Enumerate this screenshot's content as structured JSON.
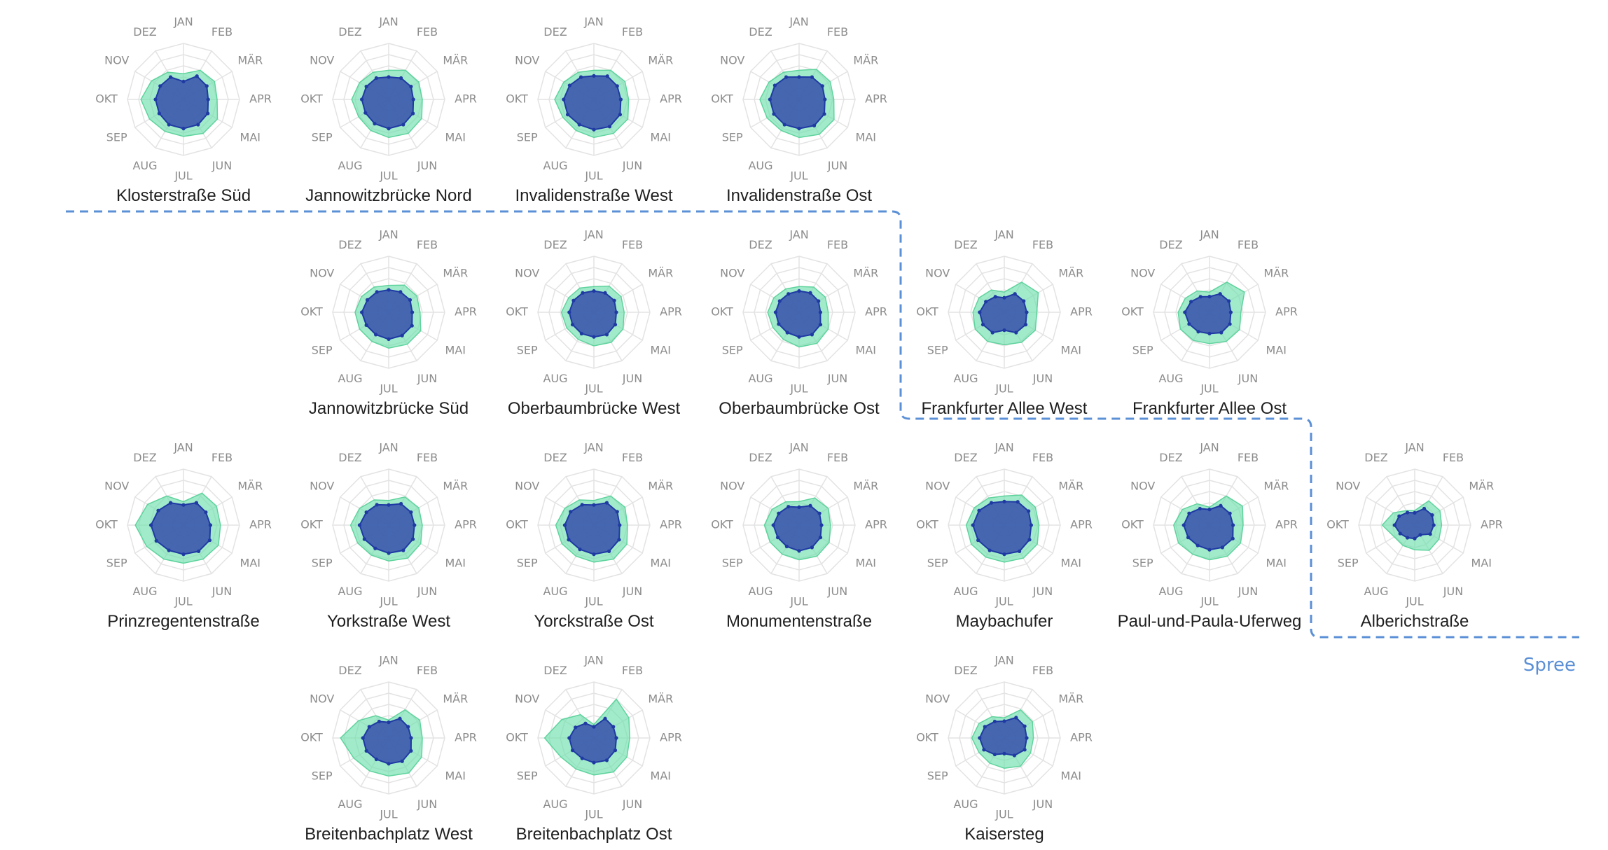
{
  "colors": {
    "outer_fill": "#6fe0ad",
    "outer_stroke": "#5fd39d",
    "inner_fill": "#3c58ad",
    "inner_stroke": "#1f3aa3",
    "grid": "#e3e3e3",
    "river": "#5b90d6"
  },
  "river_label": "Spree",
  "chart_data": {
    "type": "radar",
    "months": [
      "JAN",
      "FEB",
      "MÄR",
      "APR",
      "MAI",
      "JUN",
      "JUL",
      "AUG",
      "SEP",
      "OKT",
      "NOV",
      "DEZ"
    ],
    "rmax": 5,
    "series_names": [
      "outer",
      "inner"
    ],
    "stations": [
      {
        "name": "Klosterstraße Süd",
        "outer": [
          2.3,
          3.0,
          3.2,
          3.0,
          3.5,
          3.5,
          3.3,
          3.3,
          3.5,
          3.8,
          3.3,
          2.8
        ],
        "inner": [
          1.6,
          2.4,
          2.4,
          2.2,
          2.5,
          2.6,
          2.6,
          2.6,
          2.5,
          2.5,
          2.4,
          2.3
        ]
      },
      {
        "name": "Jannowitzbrücke Nord",
        "outer": [
          2.6,
          3.0,
          3.1,
          3.0,
          3.4,
          3.5,
          3.4,
          3.2,
          3.1,
          3.3,
          3.0,
          2.8
        ],
        "inner": [
          2.0,
          2.2,
          2.3,
          2.2,
          2.5,
          2.6,
          2.6,
          2.5,
          2.4,
          2.4,
          2.3,
          2.2
        ]
      },
      {
        "name": "Invalidenstraße West",
        "outer": [
          2.6,
          3.0,
          3.2,
          3.1,
          3.5,
          3.5,
          3.4,
          3.2,
          3.2,
          3.5,
          3.1,
          2.8
        ],
        "inner": [
          2.1,
          2.4,
          2.4,
          2.4,
          2.7,
          2.8,
          2.7,
          2.6,
          2.7,
          2.7,
          2.5,
          2.3
        ]
      },
      {
        "name": "Invalidenstraße Ost",
        "outer": [
          2.6,
          3.1,
          3.2,
          3.1,
          3.6,
          3.6,
          3.4,
          3.2,
          3.3,
          3.5,
          3.1,
          2.8
        ],
        "inner": [
          2.0,
          2.3,
          2.4,
          2.3,
          2.6,
          2.7,
          2.6,
          2.6,
          2.6,
          2.6,
          2.5,
          2.3
        ]
      },
      {
        "name": "Jannowitzbrücke Süd",
        "outer": [
          2.4,
          2.8,
          2.9,
          2.8,
          3.3,
          3.3,
          3.2,
          3.0,
          3.0,
          3.0,
          2.8,
          2.6
        ],
        "inner": [
          2.0,
          2.1,
          2.2,
          2.1,
          2.4,
          2.4,
          2.4,
          2.3,
          2.3,
          2.4,
          2.2,
          2.1
        ]
      },
      {
        "name": "Oberbaumbrücke West",
        "outer": [
          2.3,
          2.7,
          2.8,
          2.7,
          3.0,
          3.1,
          3.0,
          2.8,
          2.8,
          2.9,
          2.6,
          2.5
        ],
        "inner": [
          1.9,
          2.0,
          2.1,
          2.0,
          2.2,
          2.3,
          2.2,
          2.2,
          2.2,
          2.2,
          2.1,
          2.0
        ]
      },
      {
        "name": "Oberbaumbrücke Ost",
        "outer": [
          2.3,
          2.6,
          2.7,
          2.6,
          3.0,
          3.2,
          3.1,
          2.8,
          2.7,
          2.8,
          2.6,
          2.4
        ],
        "inner": [
          1.9,
          2.0,
          2.0,
          1.9,
          2.2,
          2.3,
          2.2,
          2.1,
          2.1,
          2.1,
          2.0,
          1.9
        ]
      },
      {
        "name": "Frankfurter Allee West",
        "outer": [
          1.8,
          3.1,
          3.5,
          2.9,
          3.2,
          3.1,
          2.9,
          3.0,
          3.0,
          2.8,
          2.6,
          2.3
        ],
        "inner": [
          1.3,
          1.9,
          2.0,
          2.0,
          2.2,
          2.1,
          1.6,
          2.1,
          2.2,
          2.2,
          1.9,
          1.6
        ]
      },
      {
        "name": "Frankfurter Allee Ost",
        "outer": [
          1.8,
          3.1,
          3.6,
          2.8,
          3.1,
          3.0,
          2.8,
          2.9,
          3.0,
          2.8,
          2.5,
          2.2
        ],
        "inner": [
          1.4,
          1.9,
          2.0,
          1.9,
          2.1,
          2.1,
          1.9,
          2.0,
          2.1,
          2.2,
          1.9,
          1.6
        ]
      },
      {
        "name": "Prinzregentenstraße",
        "outer": [
          2.1,
          3.3,
          3.4,
          3.3,
          3.6,
          3.5,
          3.4,
          3.5,
          3.8,
          4.3,
          3.7,
          3.0
        ],
        "inner": [
          1.8,
          2.3,
          2.3,
          2.4,
          2.7,
          2.7,
          2.6,
          2.6,
          2.8,
          2.9,
          2.6,
          2.3
        ]
      },
      {
        "name": "Yorkstraße West",
        "outer": [
          2.2,
          2.9,
          3.1,
          3.0,
          3.3,
          3.4,
          3.2,
          3.1,
          3.2,
          3.4,
          3.0,
          2.6
        ],
        "inner": [
          1.8,
          2.2,
          2.3,
          2.3,
          2.5,
          2.6,
          2.5,
          2.4,
          2.5,
          2.6,
          2.3,
          2.1
        ]
      },
      {
        "name": "Yorckstraße Ost",
        "outer": [
          2.2,
          3.0,
          3.2,
          3.0,
          3.4,
          3.5,
          3.3,
          3.2,
          3.3,
          3.4,
          3.0,
          2.6
        ],
        "inner": [
          1.8,
          2.3,
          2.4,
          2.3,
          2.6,
          2.7,
          2.6,
          2.5,
          2.6,
          2.6,
          2.4,
          2.1
        ]
      },
      {
        "name": "Monumentenstraße",
        "outer": [
          2.1,
          2.8,
          3.0,
          2.8,
          3.1,
          3.2,
          3.1,
          3.0,
          3.0,
          3.1,
          2.8,
          2.4
        ],
        "inner": [
          1.6,
          2.0,
          2.1,
          2.0,
          2.2,
          2.3,
          2.3,
          2.2,
          2.2,
          2.3,
          2.1,
          1.9
        ]
      },
      {
        "name": "Maybachufer",
        "outer": [
          2.6,
          3.1,
          3.2,
          3.1,
          3.4,
          3.4,
          3.3,
          3.3,
          3.4,
          3.4,
          3.1,
          2.8
        ],
        "inner": [
          2.1,
          2.4,
          2.5,
          2.4,
          2.6,
          2.7,
          2.6,
          2.6,
          2.7,
          2.8,
          2.6,
          2.3
        ]
      },
      {
        "name": "Paul-und-Paula-Uferweg",
        "outer": [
          1.6,
          3.0,
          3.4,
          3.0,
          3.2,
          3.2,
          3.1,
          3.0,
          3.2,
          3.2,
          2.8,
          2.2
        ],
        "inner": [
          1.4,
          2.0,
          2.1,
          2.1,
          2.4,
          2.3,
          2.2,
          2.1,
          2.2,
          2.3,
          2.1,
          1.7
        ]
      },
      {
        "name": "Alberichstraße",
        "outer": [
          1.3,
          2.5,
          2.6,
          2.4,
          2.5,
          2.6,
          2.2,
          2.1,
          2.1,
          2.9,
          2.2,
          1.5
        ],
        "inner": [
          1.1,
          1.7,
          1.8,
          1.7,
          1.6,
          1.0,
          1.2,
          1.3,
          1.5,
          1.8,
          1.6,
          1.3
        ]
      },
      {
        "name": "Breitenbachplatz West",
        "outer": [
          1.6,
          2.9,
          3.2,
          3.0,
          3.4,
          3.6,
          3.4,
          3.4,
          3.6,
          4.3,
          3.1,
          2.3
        ],
        "inner": [
          1.4,
          2.0,
          2.0,
          2.0,
          2.3,
          2.4,
          2.3,
          2.2,
          2.3,
          2.3,
          2.0,
          1.7
        ]
      },
      {
        "name": "Breitenbachplatz Ost",
        "outer": [
          1.2,
          4.0,
          3.6,
          3.2,
          3.4,
          3.5,
          3.3,
          3.2,
          3.4,
          4.4,
          3.3,
          2.4
        ],
        "inner": [
          1.0,
          2.0,
          2.0,
          2.0,
          2.2,
          2.3,
          2.2,
          2.1,
          2.2,
          2.2,
          1.9,
          1.5
        ]
      },
      {
        "name": "Kaisersteg",
        "outer": [
          1.8,
          2.9,
          2.9,
          2.6,
          2.7,
          2.9,
          2.7,
          2.6,
          2.6,
          2.9,
          2.6,
          2.2
        ],
        "inner": [
          1.5,
          2.1,
          2.1,
          2.0,
          2.1,
          1.8,
          1.4,
          1.7,
          2.1,
          2.2,
          2.0,
          1.7
        ]
      }
    ]
  }
}
